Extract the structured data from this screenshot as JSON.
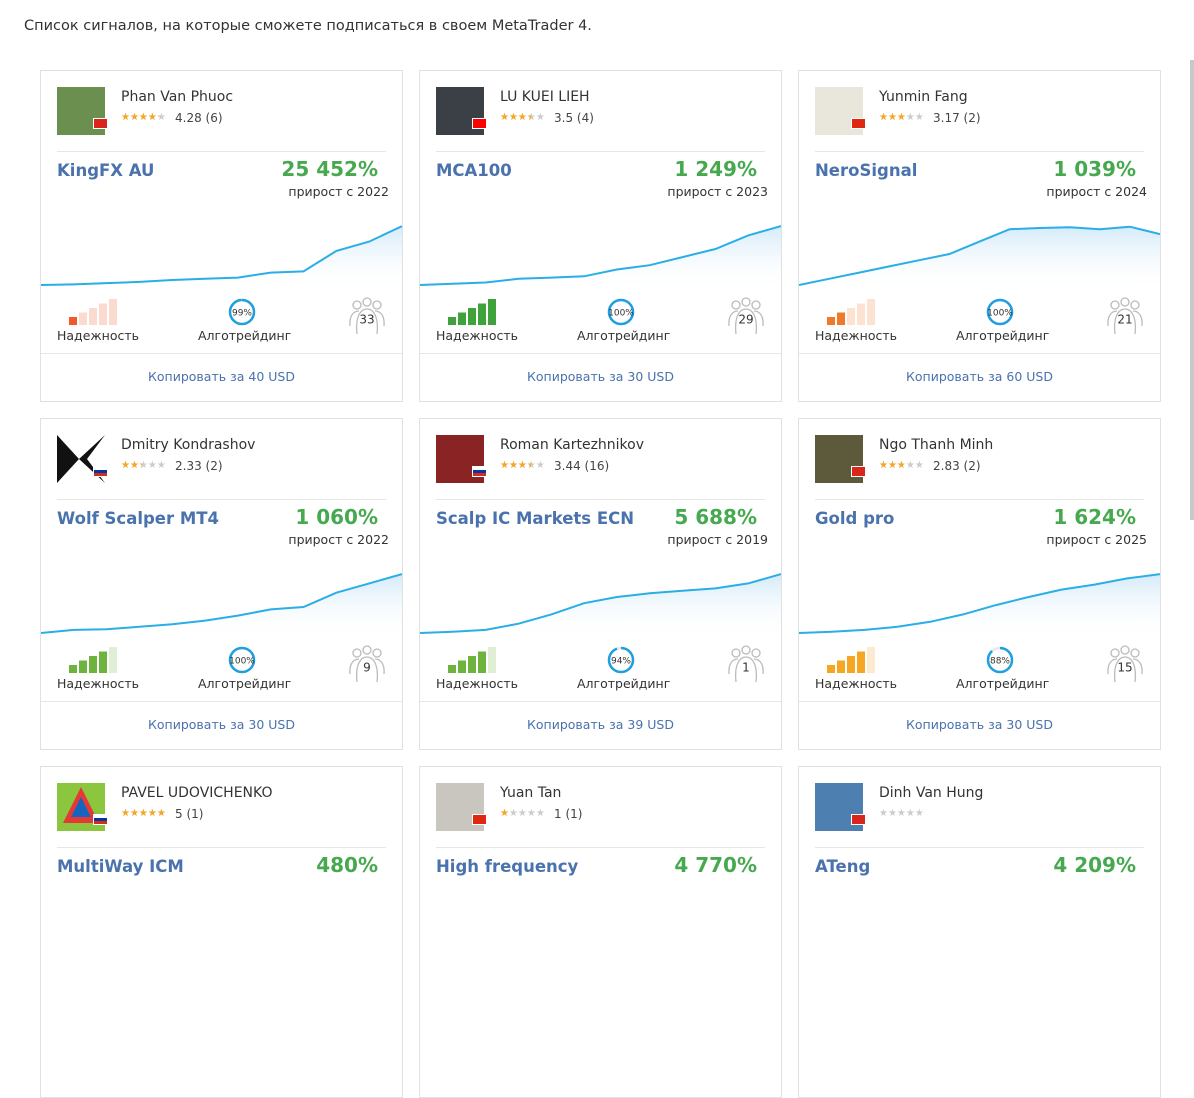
{
  "intro": "Список сигналов, на которые сможете подписаться в своем MetaTrader 4.",
  "labels": {
    "reliability": "Надежность",
    "algo": "Алготрейдинг"
  },
  "cards": [
    {
      "author": "Phan Van Phuoc",
      "flag": "vn",
      "rating": 4.28,
      "reviews": "(6)",
      "name": "KingFX AU",
      "growth": "25 452%",
      "since": "прирост с 2022",
      "reliability": {
        "level": 1,
        "color": "#ef5a2a"
      },
      "algo": {
        "value": 99,
        "label": "99%"
      },
      "subscribers": 33,
      "copy": "Копировать за 40 USD"
    },
    {
      "author": "LU KUEI LIEH",
      "flag": "tw",
      "rating": 3.5,
      "reviews": "(4)",
      "name": "MCA100",
      "growth": "1 249%",
      "since": "прирост с 2023",
      "reliability": {
        "level": 5,
        "color": "#3ea33a"
      },
      "algo": {
        "value": 100,
        "label": "100%"
      },
      "subscribers": 29,
      "copy": "Копировать за 30 USD"
    },
    {
      "author": "Yunmin Fang",
      "flag": "cn",
      "rating": 3.17,
      "reviews": "(2)",
      "name": "NeroSignal",
      "growth": "1 039%",
      "since": "прирост с 2024",
      "reliability": {
        "level": 2,
        "color": "#f07a2c"
      },
      "algo": {
        "value": 100,
        "label": "100%"
      },
      "subscribers": 21,
      "copy": "Копировать за 60 USD"
    },
    {
      "author": "Dmitry Kondrashov",
      "flag": "ru",
      "rating": 2.33,
      "reviews": "(2)",
      "name": "Wolf Scalper MT4",
      "growth": "1 060%",
      "since": "прирост с 2022",
      "reliability": {
        "level": 4,
        "color": "#6fb33f"
      },
      "algo": {
        "value": 100,
        "label": "100%"
      },
      "subscribers": 9,
      "copy": "Копировать за 30 USD"
    },
    {
      "author": "Roman Kartezhnikov",
      "flag": "ru",
      "rating": 3.44,
      "reviews": "(16)",
      "name": "Scalp IC Markets ECN",
      "growth": "5 688%",
      "since": "прирост с 2019",
      "reliability": {
        "level": 4,
        "color": "#6fb33f"
      },
      "algo": {
        "value": 94,
        "label": "94%"
      },
      "subscribers": 1,
      "copy": "Копировать за 39 USD"
    },
    {
      "author": "Ngo Thanh Minh",
      "flag": "vn",
      "rating": 2.83,
      "reviews": "(2)",
      "name": "Gold pro",
      "growth": "1 624%",
      "since": "прирост с 2025",
      "reliability": {
        "level": 4,
        "color": "#f5a623"
      },
      "algo": {
        "value": 88,
        "label": "88%"
      },
      "subscribers": 15,
      "copy": "Копировать за 30 USD"
    },
    {
      "author": "PAVEL UDOVICHENKO",
      "flag": "ru",
      "rating": 5,
      "reviews": "(1)",
      "name": "MultiWay ICM",
      "growth": "480%"
    },
    {
      "author": "Yuan Tan",
      "flag": "cn",
      "rating": 1,
      "reviews": "(1)",
      "name": "High frequency",
      "growth": "4 770%"
    },
    {
      "author": "Dinh Van Hung",
      "flag": "vn",
      "name": "ATeng",
      "growth": "4 209%"
    }
  ]
}
